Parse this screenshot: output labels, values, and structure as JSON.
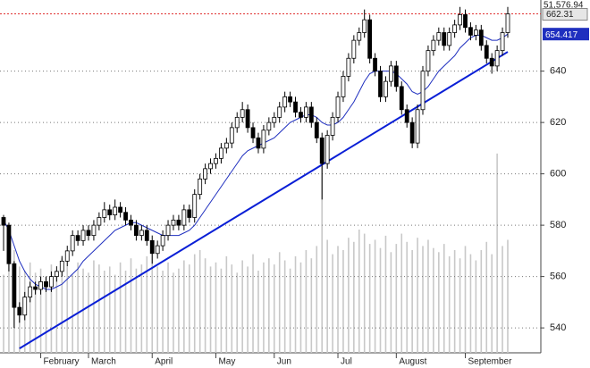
{
  "chart_data": {
    "type": "candlestick",
    "candles": [
      [
        583,
        584,
        570,
        580
      ],
      [
        580,
        581,
        562,
        565
      ],
      [
        565,
        566,
        540,
        548
      ],
      [
        548,
        550,
        542,
        545
      ],
      [
        545,
        554,
        543,
        552
      ],
      [
        552,
        558,
        550,
        556
      ],
      [
        556,
        558,
        553,
        555
      ],
      [
        555,
        560,
        553,
        558
      ],
      [
        558,
        560,
        554,
        556
      ],
      [
        556,
        562,
        554,
        560
      ],
      [
        560,
        564,
        558,
        562
      ],
      [
        562,
        568,
        560,
        566
      ],
      [
        566,
        572,
        564,
        570
      ],
      [
        570,
        578,
        568,
        576
      ],
      [
        576,
        578,
        572,
        574
      ],
      [
        574,
        580,
        572,
        578
      ],
      [
        578,
        580,
        574,
        576
      ],
      [
        576,
        582,
        574,
        580
      ],
      [
        580,
        585,
        578,
        583
      ],
      [
        583,
        589,
        581,
        586
      ],
      [
        586,
        588,
        582,
        584
      ],
      [
        584,
        590,
        582,
        587
      ],
      [
        587,
        589,
        583,
        585
      ],
      [
        585,
        587,
        580,
        582
      ],
      [
        582,
        584,
        578,
        580
      ],
      [
        580,
        582,
        574,
        576
      ],
      [
        576,
        580,
        574,
        578
      ],
      [
        578,
        580,
        572,
        574
      ],
      [
        574,
        576,
        565,
        569
      ],
      [
        569,
        574,
        567,
        572
      ],
      [
        572,
        578,
        570,
        576
      ],
      [
        576,
        582,
        574,
        580
      ],
      [
        580,
        584,
        578,
        582
      ],
      [
        582,
        584,
        578,
        580
      ],
      [
        580,
        588,
        578,
        586
      ],
      [
        586,
        588,
        581,
        583
      ],
      [
        583,
        594,
        581,
        592
      ],
      [
        592,
        600,
        590,
        598
      ],
      [
        598,
        604,
        596,
        602
      ],
      [
        602,
        606,
        600,
        604
      ],
      [
        604,
        608,
        602,
        606
      ],
      [
        606,
        612,
        604,
        610
      ],
      [
        610,
        614,
        608,
        612
      ],
      [
        612,
        620,
        610,
        618
      ],
      [
        618,
        624,
        616,
        622
      ],
      [
        622,
        628,
        620,
        625
      ],
      [
        625,
        627,
        616,
        618
      ],
      [
        618,
        620,
        612,
        614
      ],
      [
        614,
        616,
        608,
        610
      ],
      [
        610,
        619,
        608,
        617
      ],
      [
        617,
        622,
        615,
        620
      ],
      [
        620,
        624,
        618,
        622
      ],
      [
        622,
        628,
        620,
        626
      ],
      [
        626,
        632,
        624,
        630
      ],
      [
        630,
        632,
        626,
        628
      ],
      [
        628,
        630,
        622,
        624
      ],
      [
        624,
        626,
        620,
        622
      ],
      [
        622,
        628,
        620,
        626
      ],
      [
        626,
        628,
        618,
        620
      ],
      [
        620,
        622,
        612,
        614
      ],
      [
        614,
        616,
        590,
        604
      ],
      [
        604,
        617,
        602,
        615
      ],
      [
        615,
        624,
        613,
        622
      ],
      [
        622,
        632,
        620,
        630
      ],
      [
        630,
        640,
        628,
        638
      ],
      [
        638,
        647,
        636,
        645
      ],
      [
        645,
        654,
        643,
        652
      ],
      [
        652,
        657,
        650,
        655
      ],
      [
        655,
        664,
        653,
        660
      ],
      [
        660,
        662,
        643,
        645
      ],
      [
        645,
        647,
        638,
        640
      ],
      [
        640,
        642,
        628,
        630
      ],
      [
        630,
        638,
        628,
        636
      ],
      [
        636,
        644,
        634,
        642
      ],
      [
        642,
        644,
        632,
        634
      ],
      [
        634,
        636,
        623,
        625
      ],
      [
        625,
        627,
        618,
        620
      ],
      [
        620,
        622,
        610,
        612
      ],
      [
        612,
        627,
        610,
        625
      ],
      [
        625,
        642,
        623,
        640
      ],
      [
        640,
        650,
        638,
        648
      ],
      [
        648,
        654,
        646,
        652
      ],
      [
        652,
        657,
        650,
        655
      ],
      [
        655,
        657,
        648,
        650
      ],
      [
        650,
        657,
        648,
        655
      ],
      [
        655,
        660,
        653,
        658
      ],
      [
        658,
        665,
        656,
        662
      ],
      [
        662,
        664,
        655,
        657
      ],
      [
        657,
        659,
        652,
        654
      ],
      [
        654,
        658,
        652,
        656
      ],
      [
        656,
        658,
        648,
        650
      ],
      [
        650,
        652,
        643,
        645
      ],
      [
        645,
        647,
        639,
        642
      ],
      [
        642,
        650,
        640,
        648
      ],
      [
        648,
        657,
        646,
        655
      ],
      [
        655,
        665,
        653,
        662.31
      ]
    ],
    "up_color": "#ffffff",
    "down_color": "#000000",
    "ma": {
      "color": "#1f2fbf",
      "values": [
        582,
        578,
        572,
        566,
        562,
        559,
        557,
        556,
        555,
        555,
        556,
        557,
        559,
        561,
        563,
        566,
        568,
        570,
        572,
        574,
        576,
        578,
        579,
        580,
        581,
        581,
        580,
        579,
        578,
        577,
        576,
        576,
        576,
        576,
        577,
        578,
        580,
        583,
        586,
        589,
        592,
        595,
        598,
        601,
        604,
        607,
        609,
        610,
        611,
        612,
        613,
        614,
        616,
        618,
        620,
        621,
        622,
        623,
        623,
        622,
        620,
        619,
        619,
        620,
        622,
        625,
        628,
        632,
        636,
        639,
        640,
        640,
        640,
        640,
        639,
        637,
        635,
        632,
        631,
        632,
        634,
        637,
        640,
        642,
        644,
        646,
        649,
        651,
        653,
        654,
        654,
        653,
        652,
        652,
        653,
        654.417
      ]
    },
    "volume": {
      "color": "#c8c8c8",
      "ylim": [
        0,
        100
      ],
      "label": "51,576.94",
      "values": [
        38,
        45,
        50,
        42,
        40,
        44,
        39,
        41,
        37,
        43,
        40,
        46,
        42,
        38,
        44,
        41,
        39,
        45,
        43,
        40,
        42,
        38,
        44,
        40,
        46,
        41,
        43,
        47,
        49,
        42,
        40,
        44,
        39,
        41,
        45,
        43,
        48,
        50,
        46,
        42,
        44,
        41,
        47,
        43,
        39,
        45,
        42,
        48,
        40,
        44,
        46,
        43,
        49,
        45,
        41,
        47,
        44,
        50,
        46,
        52,
        95,
        55,
        48,
        52,
        50,
        56,
        54,
        60,
        58,
        53,
        55,
        51,
        57,
        49,
        53,
        58,
        54,
        50,
        56,
        52,
        55,
        51,
        49,
        53,
        47,
        50,
        46,
        52,
        48,
        45,
        50,
        54,
        48,
        97,
        52,
        55
      ]
    },
    "trendline": {
      "color": "#0a1fd6",
      "start": [
        3,
        532
      ],
      "end": [
        95,
        647.5
      ]
    },
    "last_line_color": "#e03030",
    "ylim": [
      530.3,
      667.7
    ],
    "yticks": [
      540,
      560,
      580,
      600,
      620,
      640
    ],
    "grid": true,
    "months": [
      {
        "label": "February",
        "index": 7
      },
      {
        "label": "March",
        "index": 16
      },
      {
        "label": "April",
        "index": 28
      },
      {
        "label": "May",
        "index": 40
      },
      {
        "label": "Jun",
        "index": 51
      },
      {
        "label": "Jul",
        "index": 63
      },
      {
        "label": "August",
        "index": 74
      },
      {
        "label": "September",
        "index": 87
      }
    ]
  }
}
